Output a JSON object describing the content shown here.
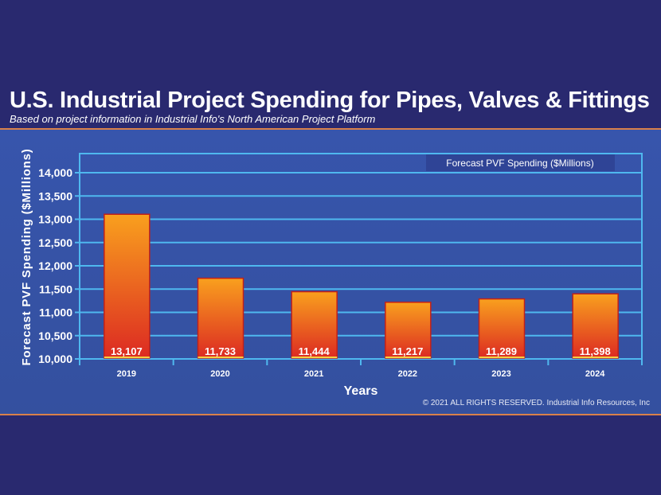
{
  "title": "U.S. Industrial Project Spending for Pipes, Valves & Fittings",
  "subtitle": "Based on project information in Industrial Info's North American Project Platform",
  "copyright": "© 2021 ALL RIGHTS RESERVED. Industrial Info Resources, Inc",
  "chart_data": {
    "type": "bar",
    "categories": [
      "2019",
      "2020",
      "2021",
      "2022",
      "2023",
      "2024"
    ],
    "series": [
      {
        "name": "Forecast PVF Spending ($Millions)",
        "values": [
          13107,
          11733,
          11444,
          11217,
          11289,
          11398
        ]
      }
    ],
    "data_labels": [
      "13,107",
      "11,733",
      "11,444",
      "11,217",
      "11,289",
      "11,398"
    ],
    "xlabel": "Years",
    "ylabel": "Forecast PVF Spending ($Millions)",
    "ylim": [
      10000,
      14400
    ],
    "yticks": [
      10000,
      10500,
      11000,
      11500,
      12000,
      12500,
      13000,
      13500,
      14000
    ],
    "ytick_labels": [
      "10,000",
      "10,500",
      "11,000",
      "11,500",
      "12,000",
      "12,500",
      "13,000",
      "13,500",
      "14,000"
    ],
    "grid": true,
    "legend_position": "top-right",
    "colors": {
      "bar_top": "#f9a01e",
      "bar_bottom": "#dc2a22",
      "grid": "#4fb8ef",
      "panel": "#3753aa",
      "background": "#29296f"
    }
  }
}
